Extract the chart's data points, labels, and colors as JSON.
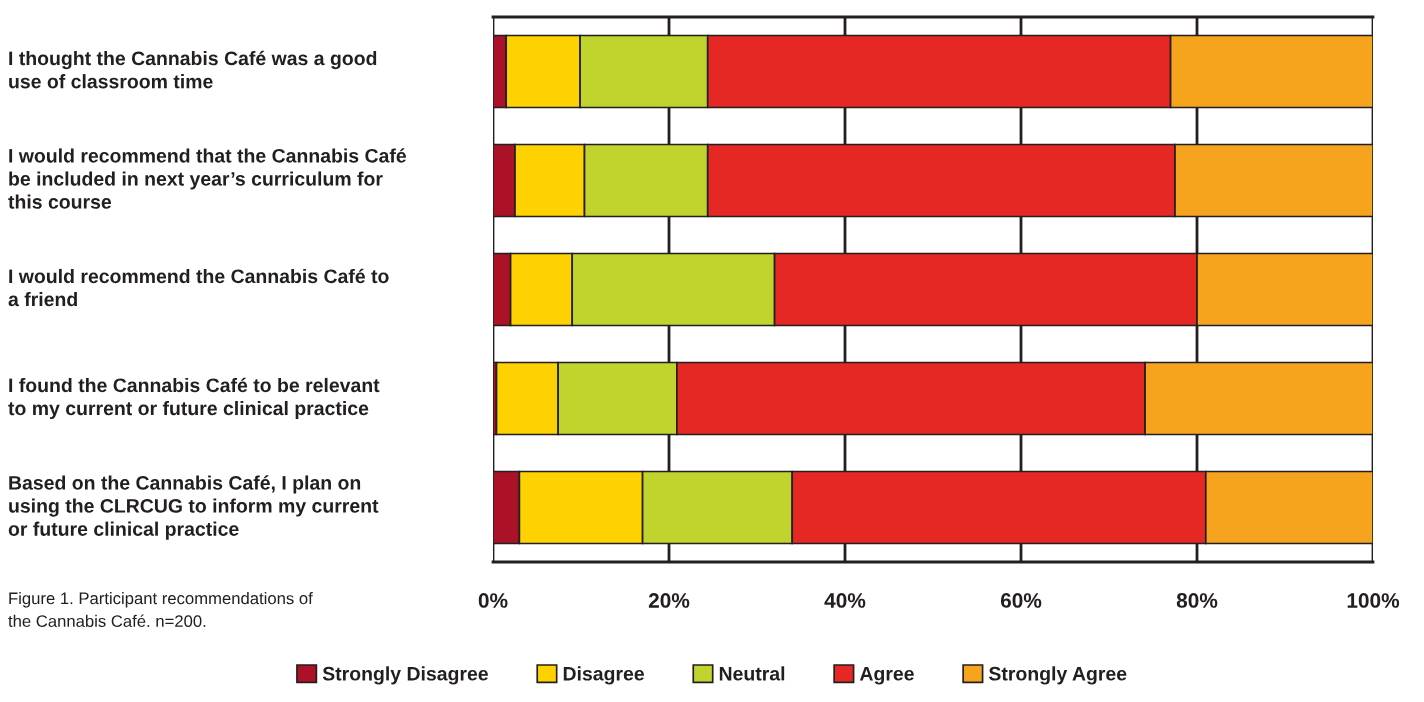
{
  "chart_data": {
    "type": "bar",
    "orientation": "horizontal",
    "stacked": true,
    "categories": [
      "I thought the Cannabis Café was a good\nuse of classroom time",
      "I would recommend that the Cannabis Café\nbe included in next year’s curriculum for\nthis course",
      "I would recommend the Cannabis Café to\na friend",
      "I found the Cannabis Café to be relevant\nto my current or future clinical practice",
      "Based on the Cannabis Café, I plan on\nusing the CLRCUG to inform my current\nor future clinical practice"
    ],
    "series": [
      {
        "name": "Strongly Disagree",
        "color": "#ab1228",
        "values": [
          1.5,
          2.5,
          2,
          0.4,
          3
        ]
      },
      {
        "name": "Disagree",
        "color": "#fdd200",
        "values": [
          8.4,
          7.9,
          7,
          7.0,
          14
        ]
      },
      {
        "name": "Neutral",
        "color": "#c1d32d",
        "values": [
          14.5,
          14.0,
          23,
          13.5,
          17
        ]
      },
      {
        "name": "Agree",
        "color": "#e52823",
        "values": [
          52.6,
          53.1,
          48,
          53.2,
          47
        ]
      },
      {
        "name": "Strongly Agree",
        "color": "#f6a31e",
        "values": [
          23.0,
          22.5,
          20,
          25.9,
          19
        ]
      }
    ],
    "xlim": [
      0,
      100
    ],
    "xticks": [
      {
        "value": 0,
        "label": "0%"
      },
      {
        "value": 20,
        "label": "20%"
      },
      {
        "value": 40,
        "label": "40%"
      },
      {
        "value": 60,
        "label": "60%"
      },
      {
        "value": 80,
        "label": "80%"
      },
      {
        "value": 100,
        "label": "100%"
      }
    ],
    "grid": "x",
    "legend": "bottom",
    "annotations": [
      "Figure 1. Participant recommendations of\nthe Cannabis Café. n=200."
    ]
  }
}
